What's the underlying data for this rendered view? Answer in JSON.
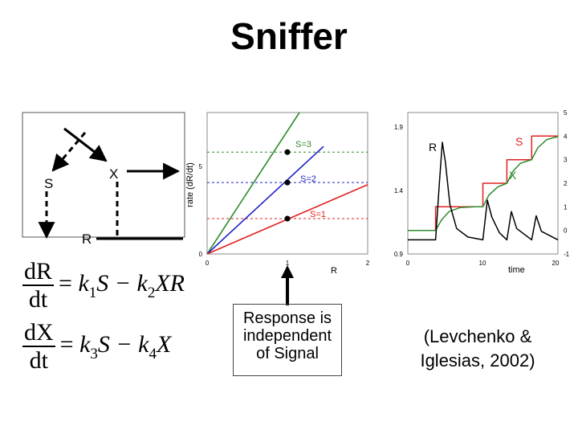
{
  "title": "Sniffer",
  "diagram": {
    "node_s": "S",
    "node_x": "X",
    "node_r": "R"
  },
  "equations": {
    "eq1": {
      "num": "dR",
      "den": "dt",
      "rhs": [
        "= ",
        "k",
        "1",
        "S − ",
        "k",
        "2",
        "XR"
      ]
    },
    "eq2": {
      "num": "dX",
      "den": "dt",
      "rhs": [
        "= ",
        "k",
        "3",
        "S − ",
        "k",
        "4",
        "X"
      ]
    }
  },
  "rate_plot": {
    "ylabel": "rate (dR/dt)",
    "xlabel": "R",
    "x_ticks": [
      "0",
      "1",
      "2"
    ],
    "y_ticks": [
      "0",
      "5"
    ],
    "labels": {
      "s3": "S=3",
      "s2": "S=2",
      "s1": "S=1"
    },
    "colors": {
      "s3": "#2e8b2e",
      "s2": "#2323c8",
      "s1": "#e02020"
    }
  },
  "time_plot": {
    "xlabel": "time",
    "x_ticks": [
      "0",
      "10",
      "20"
    ],
    "left_ticks": [
      "0.9",
      "1.4",
      "1.9"
    ],
    "right_ticks": [
      "-1",
      "0",
      "1",
      "2",
      "3",
      "4",
      "5"
    ],
    "labels": {
      "r": "R",
      "s": "S",
      "x": "X"
    },
    "colors": {
      "s": "#e02020",
      "x": "#2e8b2e",
      "r": "#000000"
    }
  },
  "chart_data": [
    {
      "type": "line",
      "xlabel": "R",
      "ylabel": "rate (dR/dt)",
      "xlim": [
        0,
        2
      ],
      "ylim": [
        0,
        10
      ],
      "series": [
        {
          "name": "S=3",
          "x": [
            0,
            1.15
          ],
          "y": [
            0,
            10
          ]
        },
        {
          "name": "S=2",
          "x": [
            0,
            1.45
          ],
          "y": [
            0,
            7.6
          ]
        },
        {
          "name": "S=1",
          "x": [
            0,
            2
          ],
          "y": [
            0,
            4.9
          ]
        }
      ],
      "reference_levels": [
        {
          "name": "S=3",
          "y": 7.2,
          "intersect_x": 1
        },
        {
          "name": "S=2",
          "y": 5.05,
          "intersect_x": 1
        },
        {
          "name": "S=1",
          "y": 2.5,
          "intersect_x": 1
        }
      ]
    },
    {
      "type": "line",
      "xlabel": "time",
      "xlim": [
        0,
        20
      ],
      "y_left_range": [
        0.9,
        1.9
      ],
      "y_right_range": [
        -1,
        5
      ],
      "series": [
        {
          "name": "S",
          "axis": "right",
          "x": [
            0,
            3.7,
            3.7,
            10,
            10,
            13.2,
            13.2,
            16.5,
            16.5,
            20
          ],
          "y": [
            0,
            0,
            1,
            1,
            2,
            2,
            3,
            3,
            4,
            4
          ]
        },
        {
          "name": "X",
          "axis": "right",
          "x": [
            0,
            3.7,
            4.5,
            5.5,
            7,
            9,
            10,
            10.8,
            12,
            13.2,
            14,
            15,
            16.5,
            17.3,
            18.5,
            20
          ],
          "y": [
            0,
            0,
            0.45,
            0.8,
            0.97,
            1.0,
            1.0,
            1.5,
            1.85,
            2.0,
            2.5,
            2.85,
            3.0,
            3.5,
            3.85,
            3.98
          ]
        },
        {
          "name": "R",
          "axis": "left",
          "x": [
            0,
            3.7,
            4.2,
            4.6,
            5.0,
            5.6,
            6.5,
            8,
            10,
            10.6,
            11.2,
            12.2,
            13.2,
            13.8,
            14.5,
            16.5,
            17.1,
            17.8,
            20
          ],
          "y": [
            1.0,
            1.0,
            1.4,
            1.69,
            1.55,
            1.25,
            1.08,
            1.02,
            1.0,
            1.28,
            1.16,
            1.05,
            1.0,
            1.2,
            1.08,
            1.0,
            1.17,
            1.06,
            1.0
          ]
        }
      ]
    }
  ],
  "response_note": [
    "Response is",
    "independent",
    "of Signal"
  ],
  "citation": [
    "(Levchenko &",
    "Iglesias, 2002)"
  ]
}
